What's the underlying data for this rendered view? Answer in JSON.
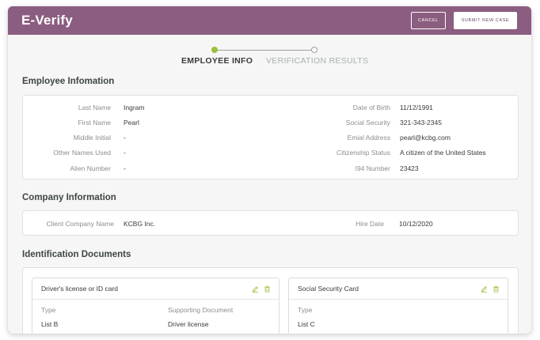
{
  "header": {
    "title": "E-Verify",
    "cancel_label": "CANCEL",
    "submit_label": "SUBMIT NEW CASE",
    "accent": "#8b5d80"
  },
  "stepper": {
    "steps": [
      {
        "label": "EMPLOYEE INFO",
        "active": true
      },
      {
        "label": "VERIFICATION RESULTS",
        "active": false
      }
    ],
    "active_color": "#9bc03a"
  },
  "employee": {
    "section_title": "Employee Infomation",
    "left": [
      {
        "label": "Last Name",
        "value": "Ingram"
      },
      {
        "label": "First Name",
        "value": "Pearl"
      },
      {
        "label": "Middle Initial",
        "value": "-"
      },
      {
        "label": "Other Names Used",
        "value": "-"
      },
      {
        "label": "Alien Number",
        "value": "-"
      }
    ],
    "right": [
      {
        "label": "Date of Birth",
        "value": "11/12/1991"
      },
      {
        "label": "Social Security",
        "value": "321-343-2345"
      },
      {
        "label": "Emial Address",
        "value": "pearl@kcbg.com"
      },
      {
        "label": "Citizenship Status",
        "value": "A citizen of the United States"
      },
      {
        "label": "I94 Number",
        "value": "23423"
      }
    ]
  },
  "company": {
    "section_title": "Company Information",
    "fields": [
      {
        "label": "Client Company Name",
        "value": "KCBG Inc."
      },
      {
        "label": "Hire Date",
        "value": "10/12/2020"
      }
    ]
  },
  "documents": {
    "section_title": "Identification Documents",
    "cards": [
      {
        "title": "Driver's license or ID card",
        "type_label": "Type",
        "type_value": "List B",
        "support_label": "Supporting Document",
        "support_value": "Driver license",
        "icons": [
          "edit-icon",
          "trash-icon"
        ]
      },
      {
        "title": "Social Security Card",
        "type_label": "Type",
        "type_value": "List C",
        "icons": [
          "edit-icon",
          "trash-icon"
        ]
      }
    ]
  }
}
